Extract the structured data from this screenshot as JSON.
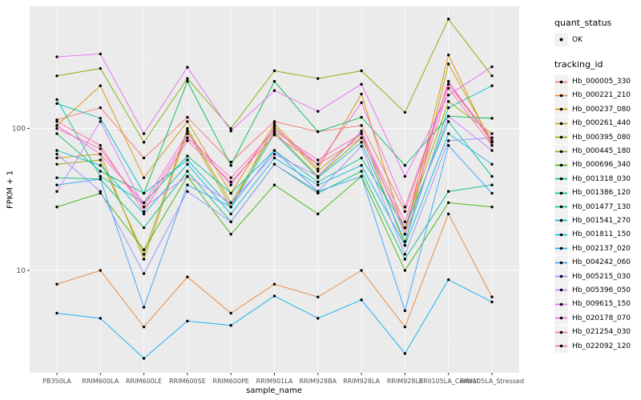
{
  "legend": {
    "quant_status": {
      "title": "quant_status",
      "items": [
        "OK"
      ]
    },
    "tracking_id": {
      "title": "tracking_id"
    }
  },
  "chart_data": {
    "type": "line",
    "title": "",
    "xlabel": "sample_name",
    "ylabel": "FPKM + 1",
    "y_scale": "log10",
    "y_ticks": [
      10,
      100
    ],
    "y_minor_ticks": [
      3.16,
      31.6,
      316
    ],
    "ylim": [
      1.9,
      725
    ],
    "grid": true,
    "legend_position": "right",
    "point_shape": "circle",
    "quant_status_all_points": "OK",
    "colors": {
      "panel_bg": "#EBEBEB",
      "grid_major": "#FFFFFF",
      "grid_minor": "#F6F6F6",
      "point": "#000000",
      "axis_text": "#4D4D4D",
      "tick": "#333333",
      "legend_key_bg": "#F2F2F2"
    },
    "categories": [
      "PB350LA",
      "RRIM600LA",
      "RRIM600LE",
      "RRIM600SE",
      "RRIM600PE",
      "RRIM901LA",
      "RRIM928BA",
      "RRIM928LA",
      "RRIM928LE",
      "RRII105LA_Control",
      "RRII105LA_Stressed"
    ],
    "series": [
      {
        "name": "Hb_000005_330",
        "color": "#F8766D",
        "values": [
          115,
          140,
          62,
          120,
          58,
          112,
          95,
          105,
          26,
          205,
          82
        ]
      },
      {
        "name": "Hb_000221_210",
        "color": "#EA8331",
        "values": [
          8,
          10,
          4,
          9,
          5,
          8,
          6.5,
          10,
          4,
          25,
          6.5
        ]
      },
      {
        "name": "Hb_000237_080",
        "color": "#D89000",
        "values": [
          105,
          200,
          45,
          112,
          35,
          108,
          52,
          175,
          18,
          330,
          76
        ]
      },
      {
        "name": "Hb_000261_440",
        "color": "#C09B00",
        "values": [
          62,
          66,
          12,
          96,
          28,
          104,
          50,
          92,
          15,
          285,
          80
        ]
      },
      {
        "name": "Hb_000395_080",
        "color": "#A3A500",
        "values": [
          56,
          60,
          13,
          100,
          30,
          95,
          46,
          86,
          20,
          155,
          92
        ]
      },
      {
        "name": "Hb_000445_180",
        "color": "#7CAE00",
        "values": [
          235,
          265,
          80,
          225,
          100,
          255,
          225,
          255,
          130,
          590,
          235
        ]
      },
      {
        "name": "Hb_000696_340",
        "color": "#39B600",
        "values": [
          28,
          35,
          14,
          46,
          18,
          40,
          25,
          46,
          10,
          30,
          28
        ]
      },
      {
        "name": "Hb_001318_030",
        "color": "#00BB4E",
        "values": [
          92,
          50,
          35,
          215,
          55,
          215,
          95,
          120,
          55,
          122,
          118
        ]
      },
      {
        "name": "Hb_001386_120",
        "color": "#00BF7D",
        "values": [
          45,
          44,
          20,
          50,
          22,
          56,
          35,
          50,
          12,
          36,
          40
        ]
      },
      {
        "name": "Hb_001477_130",
        "color": "#00C1A3",
        "values": [
          160,
          46,
          30,
          64,
          35,
          70,
          42,
          62,
          20,
          112,
          46
        ]
      },
      {
        "name": "Hb_001541_270",
        "color": "#00BFC4",
        "values": [
          150,
          118,
          35,
          60,
          28,
          92,
          45,
          80,
          16,
          140,
          200
        ]
      },
      {
        "name": "Hb_001811_150",
        "color": "#00BAE0",
        "values": [
          70,
          55,
          25,
          56,
          25,
          62,
          40,
          55,
          15,
          92,
          56
        ]
      },
      {
        "name": "Hb_002137_020",
        "color": "#00B0F6",
        "values": [
          5,
          4.6,
          2.4,
          4.4,
          4.1,
          6.6,
          4.6,
          6.2,
          2.6,
          8.6,
          6
        ]
      },
      {
        "name": "Hb_004242_060",
        "color": "#35A2FF",
        "values": [
          40,
          44,
          5.5,
          40,
          28,
          70,
          36,
          46,
          5.2,
          76,
          35
        ]
      },
      {
        "name": "Hb_005215_030",
        "color": "#9590FF",
        "values": [
          66,
          36,
          9.5,
          36,
          22,
          56,
          36,
          75,
          13,
          82,
          86
        ]
      },
      {
        "name": "Hb_005396_050",
        "color": "#C77CFF",
        "values": [
          36,
          112,
          28,
          46,
          30,
          66,
          46,
          96,
          18,
          122,
          70
        ]
      },
      {
        "name": "Hb_009615_150",
        "color": "#E76BF3",
        "values": [
          320,
          335,
          92,
          270,
          96,
          185,
          132,
          205,
          46,
          172,
          272
        ]
      },
      {
        "name": "Hb_020178_070",
        "color": "#FA62DB",
        "values": [
          105,
          66,
          30,
          92,
          40,
          100,
          56,
          152,
          28,
          205,
          86
        ]
      },
      {
        "name": "Hb_021254_030",
        "color": "#FF62BC",
        "values": [
          100,
          72,
          28,
          86,
          45,
          96,
          60,
          92,
          22,
          215,
          80
        ]
      },
      {
        "name": "Hb_022092_120",
        "color": "#FF6A98",
        "values": [
          112,
          76,
          26,
          82,
          42,
          90,
          56,
          86,
          20,
          192,
          76
        ]
      }
    ]
  }
}
